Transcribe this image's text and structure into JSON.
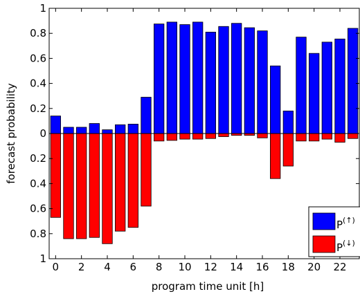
{
  "chart_data": {
    "type": "bar",
    "title": "",
    "xlabel": "program time unit [h]",
    "ylabel": "forecast probability",
    "x": [
      0,
      1,
      2,
      3,
      4,
      5,
      6,
      7,
      8,
      9,
      10,
      11,
      12,
      13,
      14,
      15,
      16,
      17,
      18,
      19,
      20,
      21,
      22,
      23
    ],
    "x_ticks": [
      "0",
      "2",
      "4",
      "6",
      "8",
      "10",
      "12",
      "14",
      "16",
      "18",
      "20",
      "22"
    ],
    "y_ticks": [
      "1",
      "0.8",
      "0.6",
      "0.4",
      "0.2",
      "0",
      "0.2",
      "0.4",
      "0.6",
      "0.8",
      "1"
    ],
    "ylim": [
      -1,
      1
    ],
    "series": [
      {
        "name": "P(↑)",
        "legend_base": "P",
        "legend_sup": "(↑)",
        "color": "#0000ff",
        "direction": "up",
        "values": [
          0.14,
          0.05,
          0.05,
          0.08,
          0.03,
          0.07,
          0.075,
          0.29,
          0.875,
          0.89,
          0.87,
          0.89,
          0.81,
          0.855,
          0.88,
          0.845,
          0.82,
          0.54,
          0.18,
          0.77,
          0.64,
          0.73,
          0.755,
          0.84
        ]
      },
      {
        "name": "P(↓)",
        "legend_base": "P",
        "legend_sup": "(↓)",
        "color": "#ff0000",
        "direction": "down",
        "values": [
          0.67,
          0.84,
          0.84,
          0.83,
          0.88,
          0.78,
          0.75,
          0.58,
          0.06,
          0.055,
          0.045,
          0.045,
          0.04,
          0.025,
          0.015,
          0.015,
          0.035,
          0.36,
          0.26,
          0.06,
          0.06,
          0.045,
          0.07,
          0.04
        ]
      }
    ],
    "legend_position": "bottom-right",
    "grid": false
  }
}
